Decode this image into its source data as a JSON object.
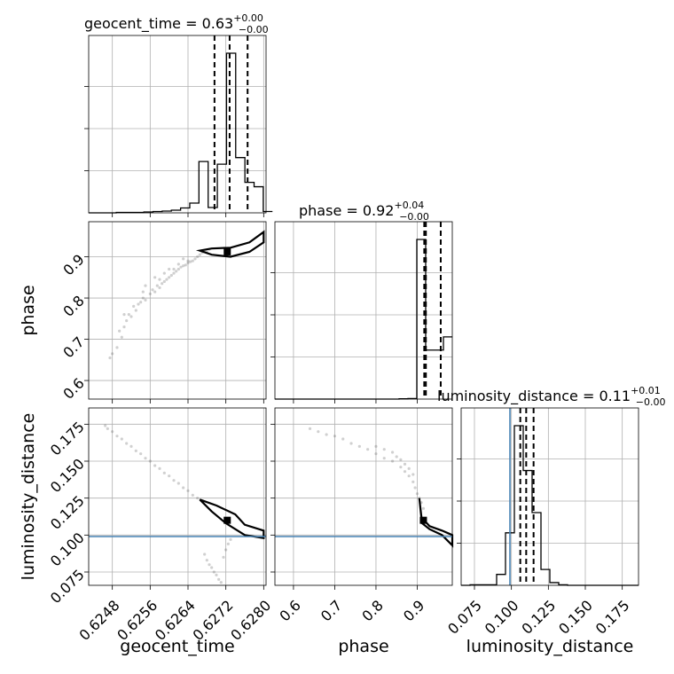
{
  "chart_data": {
    "type": "corner",
    "parameters": [
      "geocent_time",
      "phase",
      "luminosity_distance"
    ],
    "titles": [
      {
        "param": "geocent_time",
        "prefix": "geocent_time = ",
        "median": "0.63",
        "plus": "+0.00",
        "minus": "−0.00"
      },
      {
        "param": "phase",
        "prefix": "phase = ",
        "median": "0.92",
        "plus": "+0.04",
        "minus": "−0.00"
      },
      {
        "param": "luminosity_distance",
        "prefix": "luminosity_distance = ",
        "median": "0.11",
        "plus": "+0.01",
        "minus": "−0.00"
      }
    ],
    "ranges": {
      "geocent_time": [
        0.6243,
        0.62805
      ],
      "phase": [
        0.555,
        0.985
      ],
      "luminosity_distance": [
        0.066,
        0.186
      ]
    },
    "ticks": {
      "geocent_time": [
        "0.6248",
        "0.6256",
        "0.6264",
        "0.6272",
        "0.6280"
      ],
      "geocent_time_values": [
        0.6248,
        0.6256,
        0.6264,
        0.6272,
        0.628
      ],
      "phase": [
        "0.6",
        "0.7",
        "0.8",
        "0.9"
      ],
      "phase_values": [
        0.6,
        0.7,
        0.8,
        0.9
      ],
      "luminosity_distance": [
        "0.075",
        "0.100",
        "0.125",
        "0.150",
        "0.175"
      ],
      "luminosity_distance_values": [
        0.075,
        0.1,
        0.125,
        0.15,
        0.175
      ]
    },
    "truths": {
      "luminosity_distance": 0.099
    },
    "quantiles": {
      "geocent_time": [
        0.62696,
        0.62728,
        0.62766
      ],
      "phase": [
        0.917,
        0.921,
        0.957
      ],
      "luminosity_distance": [
        0.106,
        0.11,
        0.115
      ]
    },
    "histograms": {
      "geocent_time": {
        "edges": [
          0.6243,
          0.624494,
          0.624689,
          0.624883,
          0.625077,
          0.625271,
          0.625466,
          0.62566,
          0.625854,
          0.626048,
          0.626243,
          0.626437,
          0.626631,
          0.626826,
          0.62702,
          0.627214,
          0.627408,
          0.627603,
          0.627797,
          0.627991,
          0.628186
        ],
        "counts": [
          0,
          0,
          0,
          1,
          1,
          1,
          2,
          3,
          4,
          6,
          11,
          22,
          116,
          12,
          110,
          361,
          125,
          69,
          59,
          3
        ]
      },
      "phase": {
        "edges": [
          0.555,
          0.5765,
          0.598,
          0.6195,
          0.641,
          0.6625,
          0.684,
          0.7055,
          0.727,
          0.7485,
          0.77,
          0.7915,
          0.813,
          0.8345,
          0.856,
          0.8775,
          0.899,
          0.9205,
          0.942,
          0.9635,
          0.985
        ],
        "counts": [
          0,
          0,
          0,
          0,
          0,
          0,
          0,
          0,
          0,
          0,
          0,
          0,
          0,
          0,
          1,
          2,
          570,
          175,
          175,
          222
        ]
      },
      "luminosity_distance": {
        "edges": [
          0.066,
          0.072,
          0.078,
          0.084,
          0.09,
          0.096,
          0.102,
          0.108,
          0.114,
          0.12,
          0.126,
          0.132,
          0.138,
          0.144,
          0.15,
          0.156,
          0.162,
          0.168,
          0.174,
          0.18,
          0.186
        ],
        "counts": [
          0,
          1,
          1,
          1,
          20,
          96,
          292,
          210,
          133,
          29,
          5,
          1,
          0,
          0,
          0,
          0,
          0,
          0,
          0,
          0
        ]
      }
    },
    "scatter": {
      "geocent_time_vs_phase": [
        [
          0.62475,
          0.655
        ],
        [
          0.6248,
          0.665
        ],
        [
          0.6249,
          0.68
        ],
        [
          0.62495,
          0.72
        ],
        [
          0.625,
          0.705
        ],
        [
          0.62505,
          0.73
        ],
        [
          0.6251,
          0.745
        ],
        [
          0.62515,
          0.76
        ],
        [
          0.6252,
          0.755
        ],
        [
          0.6253,
          0.77
        ],
        [
          0.62535,
          0.785
        ],
        [
          0.6254,
          0.79
        ],
        [
          0.62545,
          0.8
        ],
        [
          0.6255,
          0.795
        ],
        [
          0.6256,
          0.81
        ],
        [
          0.62565,
          0.82
        ],
        [
          0.6257,
          0.815
        ],
        [
          0.62575,
          0.83
        ],
        [
          0.6258,
          0.825
        ],
        [
          0.62585,
          0.835
        ],
        [
          0.6259,
          0.84
        ],
        [
          0.62595,
          0.845
        ],
        [
          0.626,
          0.85
        ],
        [
          0.62605,
          0.855
        ],
        [
          0.6261,
          0.86
        ],
        [
          0.62615,
          0.865
        ],
        [
          0.6262,
          0.87
        ],
        [
          0.62625,
          0.875
        ],
        [
          0.6263,
          0.878
        ],
        [
          0.62635,
          0.88
        ],
        [
          0.6264,
          0.885
        ],
        [
          0.62645,
          0.888
        ],
        [
          0.6265,
          0.89
        ],
        [
          0.62655,
          0.895
        ],
        [
          0.6266,
          0.9
        ],
        [
          0.62665,
          0.905
        ],
        [
          0.6267,
          0.91
        ],
        [
          0.62675,
          0.915
        ],
        [
          0.6268,
          0.912
        ],
        [
          0.62685,
          0.918
        ],
        [
          0.6258,
          0.845
        ],
        [
          0.6259,
          0.86
        ],
        [
          0.6262,
          0.882
        ],
        [
          0.6261,
          0.87
        ],
        [
          0.6264,
          0.89
        ],
        [
          0.6263,
          0.895
        ],
        [
          0.626,
          0.87
        ],
        [
          0.6257,
          0.85
        ],
        [
          0.6255,
          0.83
        ],
        [
          0.62505,
          0.76
        ],
        [
          0.62545,
          0.815
        ],
        [
          0.62525,
          0.78
        ]
      ],
      "geocent_time_vs_distance": [
        [
          0.62465,
          0.174
        ],
        [
          0.6247,
          0.172
        ],
        [
          0.6248,
          0.17
        ],
        [
          0.6249,
          0.167
        ],
        [
          0.625,
          0.165
        ],
        [
          0.6251,
          0.162
        ],
        [
          0.6252,
          0.16
        ],
        [
          0.6253,
          0.157
        ],
        [
          0.6254,
          0.155
        ],
        [
          0.6255,
          0.152
        ],
        [
          0.6256,
          0.15
        ],
        [
          0.6257,
          0.147
        ],
        [
          0.6258,
          0.145
        ],
        [
          0.6259,
          0.142
        ],
        [
          0.626,
          0.14
        ],
        [
          0.6261,
          0.137
        ],
        [
          0.6262,
          0.135
        ],
        [
          0.6263,
          0.132
        ],
        [
          0.6264,
          0.13
        ],
        [
          0.6265,
          0.127
        ],
        [
          0.6266,
          0.125
        ],
        [
          0.62675,
          0.087
        ],
        [
          0.6268,
          0.083
        ],
        [
          0.62685,
          0.08
        ],
        [
          0.6269,
          0.078
        ],
        [
          0.62695,
          0.075
        ],
        [
          0.627,
          0.073
        ],
        [
          0.62705,
          0.07
        ],
        [
          0.6271,
          0.068
        ],
        [
          0.62715,
          0.085
        ],
        [
          0.6272,
          0.09
        ],
        [
          0.62725,
          0.094
        ],
        [
          0.6273,
          0.097
        ]
      ],
      "phase_vs_distance": [
        [
          0.64,
          0.172
        ],
        [
          0.66,
          0.17
        ],
        [
          0.68,
          0.168
        ],
        [
          0.7,
          0.167
        ],
        [
          0.72,
          0.165
        ],
        [
          0.74,
          0.162
        ],
        [
          0.76,
          0.16
        ],
        [
          0.78,
          0.158
        ],
        [
          0.8,
          0.155
        ],
        [
          0.82,
          0.152
        ],
        [
          0.84,
          0.15
        ],
        [
          0.86,
          0.146
        ],
        [
          0.87,
          0.143
        ],
        [
          0.88,
          0.14
        ],
        [
          0.89,
          0.136
        ],
        [
          0.895,
          0.132
        ],
        [
          0.9,
          0.128
        ],
        [
          0.905,
          0.125
        ],
        [
          0.91,
          0.122
        ],
        [
          0.915,
          0.118
        ],
        [
          0.82,
          0.158
        ],
        [
          0.85,
          0.153
        ],
        [
          0.87,
          0.148
        ],
        [
          0.88,
          0.145
        ],
        [
          0.89,
          0.141
        ],
        [
          0.8,
          0.16
        ],
        [
          0.84,
          0.156
        ],
        [
          0.86,
          0.151
        ]
      ]
    },
    "contours": {
      "geocent_time_vs_phase": [
        [
          [
            0.62665,
            0.915
          ],
          [
            0.6269,
            0.905
          ],
          [
            0.6273,
            0.9
          ],
          [
            0.6277,
            0.912
          ],
          [
            0.628,
            0.935
          ],
          [
            0.628,
            0.96
          ],
          [
            0.6277,
            0.935
          ],
          [
            0.6273,
            0.922
          ],
          [
            0.6269,
            0.92
          ],
          [
            0.62665,
            0.915
          ]
        ]
      ],
      "geocent_time_vs_distance": [
        [
          [
            0.62665,
            0.124
          ],
          [
            0.6269,
            0.116
          ],
          [
            0.6272,
            0.108
          ],
          [
            0.6276,
            0.1
          ],
          [
            0.628,
            0.098
          ],
          [
            0.628,
            0.103
          ],
          [
            0.6276,
            0.107
          ],
          [
            0.6274,
            0.114
          ],
          [
            0.627,
            0.12
          ],
          [
            0.62665,
            0.124
          ]
        ]
      ],
      "phase_vs_distance": [
        [
          [
            0.905,
            0.125
          ],
          [
            0.91,
            0.112
          ],
          [
            0.93,
            0.106
          ],
          [
            0.96,
            0.103
          ],
          [
            0.985,
            0.1
          ],
          [
            0.985,
            0.093
          ],
          [
            0.96,
            0.1
          ],
          [
            0.93,
            0.104
          ],
          [
            0.912,
            0.108
          ],
          [
            0.905,
            0.125
          ]
        ]
      ]
    }
  }
}
